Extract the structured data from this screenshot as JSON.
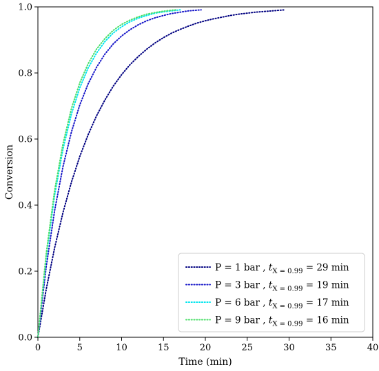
{
  "chart_data": {
    "type": "line",
    "xlabel": "Time (min)",
    "ylabel": "Conversion",
    "xlim": [
      0,
      40
    ],
    "ylim": [
      0,
      1
    ],
    "xticks": [
      "0",
      "5",
      "10",
      "15",
      "20",
      "25",
      "30",
      "35",
      "40"
    ],
    "yticks": [
      "0.0",
      "0.2",
      "0.4",
      "0.6",
      "0.8",
      "1.0"
    ],
    "grid": false,
    "legend_placement": "bottom-right",
    "line_style": "dotted",
    "series": [
      {
        "legend_prefix": "P = 1 bar ,",
        "legend_var": "t",
        "legend_sub": "X = 0.99",
        "legend_suffix": "= 29 min",
        "color": "#000080",
        "x": [
          0,
          1,
          2,
          3,
          4,
          5,
          6,
          7,
          8,
          9,
          10,
          11,
          12,
          13,
          14,
          15,
          16,
          17,
          18,
          19,
          20,
          21,
          22,
          23,
          24,
          25,
          26,
          27,
          28,
          29,
          29.5
        ],
        "y": [
          0,
          0.146,
          0.271,
          0.378,
          0.469,
          0.547,
          0.613,
          0.67,
          0.718,
          0.76,
          0.795,
          0.825,
          0.85,
          0.872,
          0.891,
          0.907,
          0.921,
          0.932,
          0.942,
          0.951,
          0.958,
          0.964,
          0.969,
          0.974,
          0.978,
          0.981,
          0.984,
          0.986,
          0.988,
          0.99,
          0.991
        ]
      },
      {
        "legend_prefix": "P = 3 bar ,",
        "legend_var": "t",
        "legend_sub": "X = 0.99",
        "legend_suffix": "= 19 min",
        "color": "#1515c8",
        "x": [
          0,
          1,
          2,
          3,
          4,
          5,
          6,
          7,
          8,
          9,
          10,
          11,
          12,
          13,
          14,
          15,
          16,
          17,
          18,
          19,
          19.5
        ],
        "y": [
          0,
          0.215,
          0.384,
          0.517,
          0.621,
          0.703,
          0.767,
          0.817,
          0.857,
          0.888,
          0.912,
          0.931,
          0.946,
          0.958,
          0.967,
          0.974,
          0.98,
          0.984,
          0.988,
          0.99,
          0.991
        ]
      },
      {
        "legend_prefix": "P = 6 bar ,",
        "legend_var": "t",
        "legend_sub": "X = 0.99",
        "legend_suffix": "= 17 min",
        "color": "#00e5ee",
        "x": [
          0,
          1,
          2,
          3,
          4,
          5,
          6,
          7,
          8,
          9,
          10,
          11,
          12,
          13,
          14,
          15,
          16,
          17
        ],
        "y": [
          0,
          0.245,
          0.43,
          0.57,
          0.675,
          0.755,
          0.815,
          0.86,
          0.895,
          0.921,
          0.94,
          0.955,
          0.966,
          0.974,
          0.981,
          0.985,
          0.988,
          0.991
        ]
      },
      {
        "legend_prefix": "P = 9 bar ,",
        "legend_var": "t",
        "legend_sub": "X = 0.99",
        "legend_suffix": "= 16 min",
        "color": "#4ddf6a",
        "x": [
          0,
          1,
          2,
          3,
          4,
          5,
          6,
          7,
          8,
          9,
          10,
          11,
          12,
          13,
          14,
          15,
          16,
          16.5
        ],
        "y": [
          0,
          0.255,
          0.445,
          0.586,
          0.692,
          0.77,
          0.828,
          0.872,
          0.904,
          0.929,
          0.947,
          0.96,
          0.97,
          0.978,
          0.983,
          0.987,
          0.99,
          0.991
        ]
      }
    ]
  }
}
